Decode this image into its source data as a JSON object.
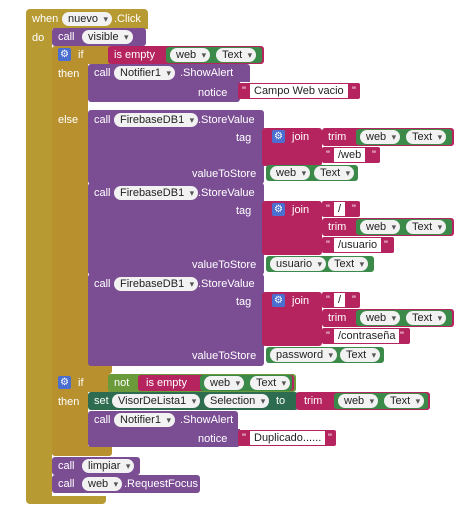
{
  "event": {
    "when": "when",
    "component": "nuevo",
    "event": ".Click",
    "do": "do"
  },
  "kw": {
    "call": "call",
    "if": "if",
    "then": "then",
    "else": "else",
    "set": "set",
    "to": "to",
    "not": "not",
    "is_empty": "is empty",
    "join": "join",
    "trim": "trim",
    "tag": "tag",
    "value_to_store": "valueToStore",
    "notice": "notice"
  },
  "blocks": {
    "visible": "visible",
    "web": "web",
    "text_prop": "Text",
    "notifier": "Notifier1",
    "show_alert": ".ShowAlert",
    "msg_campo": "Campo Web vacio",
    "firebase": "FirebaseDB1",
    "store_value": ".StoreValue",
    "slash_web": "/web",
    "slash": "/",
    "slash_usuario": "/usuario",
    "slash_pass": "/contraseña",
    "usuario": "usuario",
    "password": "password",
    "visor": "VisorDeLista1",
    "selection": "Selection",
    "msg_dup": "Duplicado......",
    "limpiar": "limpiar",
    "request_focus": ".RequestFocus"
  }
}
